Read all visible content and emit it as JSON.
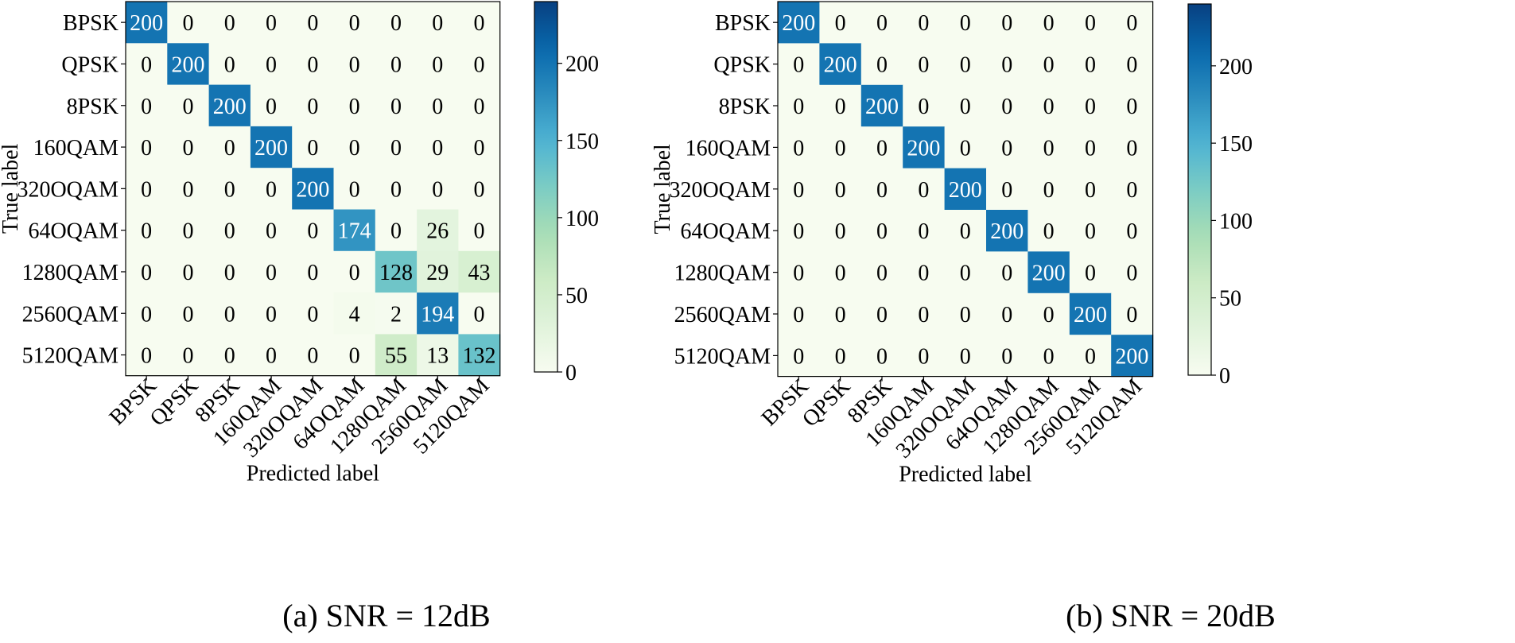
{
  "chart_data": [
    {
      "type": "heatmap",
      "subplot_label": "(a)",
      "title": "(a) SNR = 12dB",
      "xlabel": "Predicted label",
      "ylabel": "True label",
      "x_categories": [
        "BPSK",
        "QPSK",
        "8PSK",
        "160QAM",
        "320OQAM",
        "64OQAM",
        "1280QAM",
        "2560QAM",
        "5120QAM"
      ],
      "y_categories": [
        "BPSK",
        "QPSK",
        "8PSK",
        "160QAM",
        "320OQAM",
        "64OQAM",
        "1280QAM",
        "2560QAM",
        "5120QAM"
      ],
      "matrix": [
        [
          200,
          0,
          0,
          0,
          0,
          0,
          0,
          0,
          0
        ],
        [
          0,
          200,
          0,
          0,
          0,
          0,
          0,
          0,
          0
        ],
        [
          0,
          0,
          200,
          0,
          0,
          0,
          0,
          0,
          0
        ],
        [
          0,
          0,
          0,
          200,
          0,
          0,
          0,
          0,
          0
        ],
        [
          0,
          0,
          0,
          0,
          200,
          0,
          0,
          0,
          0
        ],
        [
          0,
          0,
          0,
          0,
          0,
          174,
          0,
          26,
          0
        ],
        [
          0,
          0,
          0,
          0,
          0,
          0,
          128,
          29,
          43
        ],
        [
          0,
          0,
          0,
          0,
          0,
          4,
          2,
          194,
          0
        ],
        [
          0,
          0,
          0,
          0,
          0,
          0,
          55,
          13,
          132
        ]
      ],
      "colorbar": {
        "range": [
          0,
          240
        ],
        "ticks": [
          0,
          50,
          100,
          150,
          200
        ],
        "colormap": "GnBu"
      }
    },
    {
      "type": "heatmap",
      "subplot_label": "(b)",
      "title": "(b) SNR = 20dB",
      "xlabel": "Predicted label",
      "ylabel": "True label",
      "x_categories": [
        "BPSK",
        "QPSK",
        "8PSK",
        "160QAM",
        "320OQAM",
        "64OQAM",
        "1280QAM",
        "2560QAM",
        "5120QAM"
      ],
      "y_categories": [
        "BPSK",
        "QPSK",
        "8PSK",
        "160QAM",
        "320OQAM",
        "64OQAM",
        "1280QAM",
        "2560QAM",
        "5120QAM"
      ],
      "matrix": [
        [
          200,
          0,
          0,
          0,
          0,
          0,
          0,
          0,
          0
        ],
        [
          0,
          200,
          0,
          0,
          0,
          0,
          0,
          0,
          0
        ],
        [
          0,
          0,
          200,
          0,
          0,
          0,
          0,
          0,
          0
        ],
        [
          0,
          0,
          0,
          200,
          0,
          0,
          0,
          0,
          0
        ],
        [
          0,
          0,
          0,
          0,
          200,
          0,
          0,
          0,
          0
        ],
        [
          0,
          0,
          0,
          0,
          0,
          200,
          0,
          0,
          0
        ],
        [
          0,
          0,
          0,
          0,
          0,
          0,
          200,
          0,
          0
        ],
        [
          0,
          0,
          0,
          0,
          0,
          0,
          0,
          200,
          0
        ],
        [
          0,
          0,
          0,
          0,
          0,
          0,
          0,
          0,
          200
        ]
      ],
      "colorbar": {
        "range": [
          0,
          240
        ],
        "ticks": [
          0,
          50,
          100,
          150,
          200
        ],
        "colormap": "GnBu"
      }
    }
  ],
  "colors": {
    "low": "#f7fcf0",
    "high": "#08306b",
    "frame": "#000000"
  }
}
